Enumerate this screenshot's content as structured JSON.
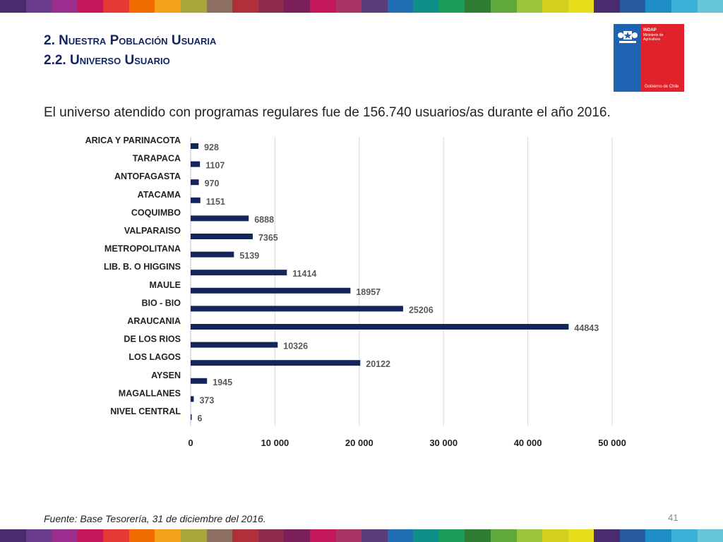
{
  "header": {
    "title_line1": "2. Nuestra Población Usuaria",
    "title_line2": "2.2. Universo Usuario"
  },
  "logo": {
    "org": "INDAP",
    "ministry": "Ministerio de Agricultura",
    "government": "Gobierno de Chile"
  },
  "subtitle": "El universo atendido con programas regulares fue de 156.740 usuarios/as durante el año 2016.",
  "chart_data": {
    "type": "bar",
    "orientation": "horizontal",
    "categories": [
      "ARICA Y PARINACOTA",
      "TARAPACA",
      "ANTOFAGASTA",
      "ATACAMA",
      "COQUIMBO",
      "VALPARAISO",
      "METROPOLITANA",
      "LIB. B. O HIGGINS",
      "MAULE",
      "BIO - BIO",
      "ARAUCANIA",
      "DE LOS RIOS",
      "LOS LAGOS",
      "AYSEN",
      "MAGALLANES",
      "NIVEL CENTRAL"
    ],
    "values": [
      928,
      1107,
      970,
      1151,
      6888,
      7365,
      5139,
      11414,
      18957,
      25206,
      44843,
      10326,
      20122,
      1945,
      373,
      6
    ],
    "xlim": [
      0,
      50000
    ],
    "xticks": [
      0,
      10000,
      20000,
      30000,
      40000,
      50000
    ],
    "xtick_labels": [
      "0",
      "10 000",
      "20 000",
      "30 000",
      "40 000",
      "50 000"
    ],
    "grid": true,
    "bar_color": "#14255c"
  },
  "footer": {
    "source": "Fuente: Base Tesorería, 31 de diciembre del 2016.",
    "page_number": "41"
  },
  "colors": {
    "stripe": [
      "#4a2b6e",
      "#6a3a8c",
      "#9b2d8e",
      "#c2185b",
      "#e53935",
      "#ef6c00",
      "#f4a21c",
      "#a8a53a",
      "#8d6e63",
      "#b0303a",
      "#8e2a4a",
      "#7b1f5a",
      "#c2185b",
      "#a83264",
      "#5a3d7a",
      "#1f6fb2",
      "#0e8f8a",
      "#1b9e5a",
      "#2e7d32",
      "#5fa83a",
      "#9bc53d",
      "#d4cf1f",
      "#e8dc1a",
      "#4a2b6e",
      "#2a5aa0",
      "#1f8ec7",
      "#3bb0d8",
      "#66c6d8"
    ],
    "title": "#14255c"
  }
}
